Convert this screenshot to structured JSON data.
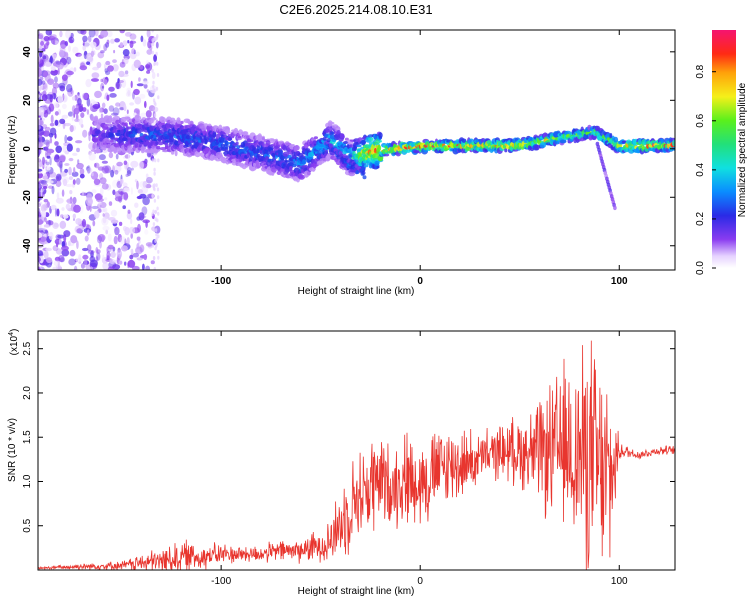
{
  "title": "C2E6.2025.214.08.10.E31",
  "chart_data": [
    {
      "type": "heatmap",
      "xlabel": "Height of straight line (km)",
      "ylabel": "Frequency (Hz)",
      "xlim": [
        -192,
        128
      ],
      "ylim": [
        -50,
        49
      ],
      "xticks": [
        -100,
        0,
        100
      ],
      "yticks": [
        -40,
        -20,
        0,
        20,
        40
      ],
      "colorbar": {
        "label": "Normalized spectral amplitude",
        "range": [
          0,
          0.97
        ],
        "ticks": [
          "0.0",
          "0.2",
          "0.4",
          "0.6",
          "0.8"
        ],
        "colormap": "rainbow (white-purple-blue-cyan-green-yellow-orange-red-magenta)"
      },
      "ridge": [
        {
          "x": -160,
          "y": 6,
          "amp": 0.2
        },
        {
          "x": -140,
          "y": 6,
          "amp": 0.3
        },
        {
          "x": -120,
          "y": 5,
          "amp": 0.3
        },
        {
          "x": -100,
          "y": 2,
          "amp": 0.3
        },
        {
          "x": -80,
          "y": -2,
          "amp": 0.3
        },
        {
          "x": -60,
          "y": -6,
          "amp": 0.35
        },
        {
          "x": -45,
          "y": 4,
          "amp": 0.4
        },
        {
          "x": -35,
          "y": -4,
          "amp": 0.45
        },
        {
          "x": -25,
          "y": -1,
          "amp": 0.9
        },
        {
          "x": 0,
          "y": 1,
          "amp": 0.9
        },
        {
          "x": 50,
          "y": 1.5,
          "amp": 0.9
        },
        {
          "x": 88,
          "y": 7,
          "amp": 0.6
        },
        {
          "x": 100,
          "y": 1,
          "amp": 0.9
        },
        {
          "x": 128,
          "y": 1.5,
          "amp": 0.95
        }
      ]
    },
    {
      "type": "line",
      "xlabel": "Height of straight line (km)",
      "ylabel": "SNR (10 * v/v)",
      "yscale_label": "(x10",
      "yscale_exp": "4",
      "xlim": [
        -192,
        128
      ],
      "ylim": [
        0,
        2.7
      ],
      "xticks": [
        -100,
        0,
        100
      ],
      "yticks": [
        0.5,
        1.0,
        1.5,
        2.0,
        2.5
      ],
      "color": "#e8352e",
      "series": [
        {
          "x": [
            -192,
            -170,
            -150,
            -140,
            -130,
            -120,
            -110,
            -100,
            -90,
            -80,
            -70,
            -60,
            -50,
            -45,
            -40,
            -35,
            -30,
            -25,
            -20,
            -15,
            -10,
            -5,
            0,
            5,
            10,
            20,
            30,
            40,
            50,
            60,
            70,
            75,
            80,
            85,
            88,
            90,
            95,
            100,
            110,
            120,
            128
          ],
          "y": [
            0.02,
            0.04,
            0.05,
            0.08,
            0.1,
            0.15,
            0.15,
            0.18,
            0.18,
            0.18,
            0.22,
            0.22,
            0.28,
            0.35,
            0.5,
            0.75,
            0.85,
            0.95,
            1.0,
            0.95,
            1.0,
            1.05,
            1.0,
            1.05,
            1.15,
            1.2,
            1.25,
            1.35,
            1.35,
            1.3,
            1.35,
            1.4,
            1.3,
            1.3,
            1.2,
            1.1,
            1.0,
            1.35,
            1.3,
            1.35,
            1.35
          ],
          "spread": [
            0.01,
            0.04,
            0.05,
            0.1,
            0.15,
            0.2,
            0.15,
            0.12,
            0.1,
            0.1,
            0.12,
            0.14,
            0.18,
            0.3,
            0.4,
            0.5,
            0.5,
            0.6,
            0.55,
            0.45,
            0.5,
            0.55,
            0.5,
            0.5,
            0.5,
            0.4,
            0.3,
            0.3,
            0.4,
            0.6,
            0.9,
            1.0,
            1.2,
            1.3,
            1.4,
            1.2,
            1.2,
            0.1,
            0.05,
            0.05,
            0.05
          ]
        }
      ]
    }
  ]
}
